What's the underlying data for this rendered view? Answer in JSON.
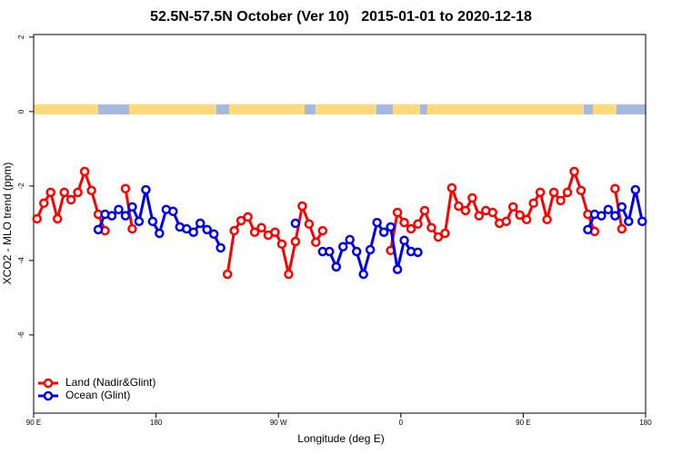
{
  "chart_data": {
    "type": "line",
    "title": "52.5N-57.5N October (Ver 10)   2015-01-01 to 2020-12-18",
    "x_label": "Longitude (deg E)",
    "y_label": "XCO2 - MLO trend (ppm)",
    "x": [
      92.5,
      97.5,
      102.5,
      107.5,
      112.5,
      117.5,
      122.5,
      127.5,
      132.5,
      137.5,
      142.5,
      147.5,
      152.5,
      157.5,
      162.5,
      167.5,
      172.5,
      177.5,
      182.5,
      187.5,
      192.5,
      197.5,
      202.5,
      207.5,
      212.5,
      217.5,
      222.5,
      227.5,
      232.5,
      237.5,
      242.5,
      247.5,
      252.5,
      257.5,
      262.5,
      267.5,
      272.5,
      277.5,
      282.5,
      287.5,
      292.5,
      297.5,
      302.5,
      307.5,
      312.5,
      317.5,
      322.5,
      327.5,
      332.5,
      337.5,
      342.5,
      347.5,
      352.5,
      357.5,
      362.5,
      367.5,
      372.5,
      377.5,
      382.5,
      387.5,
      392.5,
      397.5,
      402.5,
      407.5,
      412.5,
      417.5,
      422.5,
      427.5,
      432.5,
      437.5,
      442.5,
      447.5,
      452.5,
      457.5,
      462.5,
      467.5,
      472.5,
      477.5,
      482.5,
      487.5,
      492.5,
      497.5,
      502.5,
      507.5,
      512.5,
      517.5,
      522.5,
      527.5,
      532.5,
      537.5
    ],
    "series": [
      {
        "name": "Land (Nadir&Glint)",
        "color": "#ff0000",
        "values": [
          -2.88,
          -2.46,
          -2.17,
          -2.88,
          -2.17,
          -2.37,
          -2.17,
          -1.61,
          -2.12,
          -2.76,
          -3.2,
          null,
          null,
          -2.07,
          -3.15,
          null,
          null,
          null,
          null,
          null,
          null,
          null,
          null,
          null,
          null,
          null,
          null,
          null,
          -4.37,
          -3.2,
          -2.93,
          -2.83,
          -3.24,
          -3.12,
          -3.32,
          -3.24,
          -3.56,
          -4.37,
          -3.49,
          -2.54,
          -3.02,
          -3.51,
          -3.2,
          null,
          null,
          null,
          null,
          null,
          null,
          null,
          null,
          null,
          -3.73,
          -2.71,
          -2.98,
          -3.15,
          -3.02,
          -2.66,
          -3.12,
          -3.37,
          -3.27,
          -2.05,
          -2.54,
          -2.66,
          -2.32,
          -2.8,
          -2.66,
          -2.71,
          -3.0,
          -2.95,
          -2.56,
          -2.78,
          -2.9,
          -2.46,
          -2.17,
          -2.9,
          -2.17,
          -2.39,
          -2.17,
          -1.61,
          -2.12,
          -2.76,
          -3.22,
          null,
          null,
          -2.07,
          -3.15,
          null,
          null,
          null
        ]
      },
      {
        "name": "Ocean (Glint)",
        "color": "#0000ee",
        "values": [
          null,
          null,
          null,
          null,
          null,
          null,
          null,
          null,
          null,
          -3.17,
          -2.76,
          -2.8,
          -2.63,
          -2.8,
          -2.56,
          -2.95,
          -2.1,
          -2.95,
          -3.27,
          -2.63,
          -2.68,
          -3.1,
          -3.15,
          -3.24,
          -3.0,
          -3.17,
          -3.29,
          -3.66,
          null,
          null,
          null,
          null,
          null,
          null,
          null,
          null,
          null,
          null,
          -3.0,
          null,
          null,
          null,
          -3.76,
          -3.76,
          -4.17,
          -3.63,
          -3.44,
          -3.76,
          -4.37,
          -3.71,
          -2.98,
          -3.24,
          -3.1,
          -4.24,
          -3.46,
          -3.76,
          -3.78,
          null,
          null,
          null,
          null,
          null,
          null,
          null,
          null,
          null,
          null,
          null,
          null,
          null,
          null,
          null,
          null,
          null,
          null,
          null,
          null,
          null,
          null,
          null,
          null,
          -3.17,
          -2.76,
          -2.8,
          -2.63,
          -2.8,
          -2.56,
          -2.95,
          -2.1,
          -2.95
        ]
      }
    ],
    "xlim": [
      90,
      540
    ],
    "xticks": [
      {
        "value": 90,
        "label": "90 E"
      },
      180,
      {
        "value": 270,
        "label": "90 W"
      },
      0,
      {
        "value": 450,
        "label": "90 E"
      },
      {
        "value": 540,
        "label": "180"
      }
    ],
    "ylim": [
      -8.1,
      2.07
    ],
    "yticks": [
      -6,
      -4,
      -2,
      0,
      2
    ],
    "legend": "bottomleft"
  }
}
